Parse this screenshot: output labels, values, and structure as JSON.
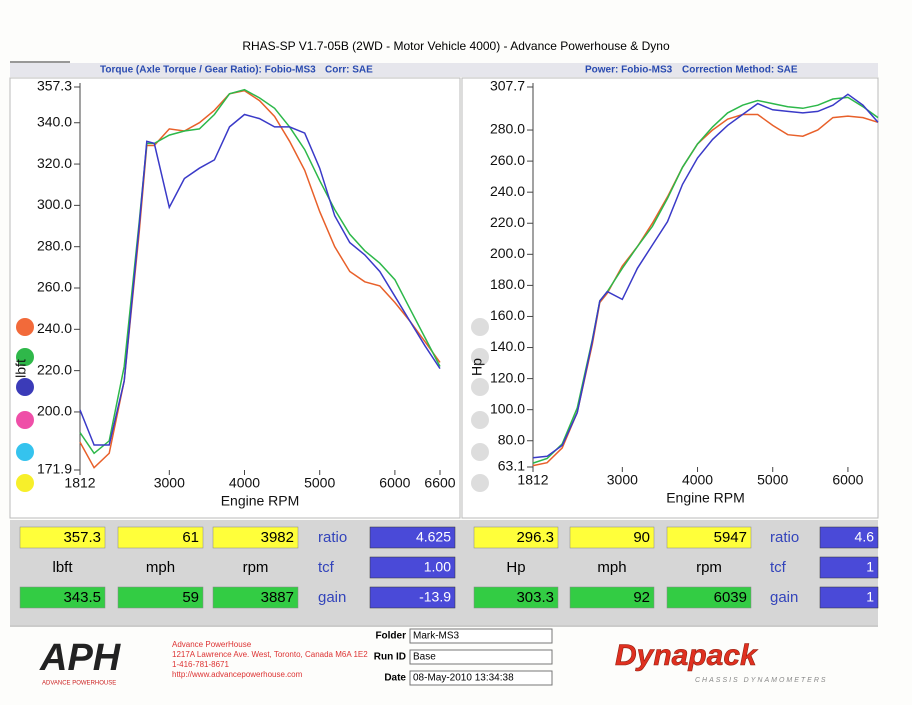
{
  "page_title": "RHAS-SP V1.7-05B  (2WD - Motor Vehicle 4000) - Advance Powerhouse & Dyno",
  "chart_data": [
    {
      "type": "line",
      "title": "Torque (Axle Torque / Gear Ratio): Fobio-MS3",
      "subtitle": "Corr: SAE",
      "x_label": "Engine RPM",
      "y_label": "lbft",
      "x": [
        1812,
        2000,
        2200,
        2400,
        2600,
        2700,
        2800,
        3000,
        3200,
        3400,
        3600,
        3800,
        4000,
        4200,
        4400,
        4600,
        4800,
        5000,
        5200,
        5400,
        5600,
        5800,
        6000,
        6200,
        6400,
        6600
      ],
      "xlim": [
        1812,
        6600
      ],
      "xticks": [
        1812,
        3000,
        4000,
        5000,
        6000,
        6600
      ],
      "ylim": [
        171.9,
        357.3
      ],
      "yticks": [
        171.9,
        {
          "value": 200,
          "label": "200.0"
        },
        {
          "value": 220,
          "label": "220.0"
        },
        {
          "value": 240,
          "label": "240.0"
        },
        {
          "value": 260,
          "label": "260.0"
        },
        {
          "value": 280,
          "label": "280.0"
        },
        {
          "value": 300,
          "label": "300.0"
        },
        {
          "value": 320,
          "label": "320.0"
        },
        {
          "value": 340,
          "label": "340.0"
        },
        357.3
      ],
      "series": [
        {
          "color": "#e8602a",
          "values": [
            185.4,
            173,
            180,
            215,
            287,
            329,
            329,
            337,
            336,
            340,
            346,
            354,
            355.5,
            350.7,
            343,
            331,
            317,
            297,
            280,
            268,
            263,
            261,
            253,
            244,
            234,
            224
          ]
        },
        {
          "color": "#2db84a",
          "values": [
            190,
            180,
            186,
            222,
            292,
            330,
            330,
            334,
            336,
            337,
            344,
            354,
            356,
            352,
            347,
            338,
            327,
            312,
            298,
            286,
            278,
            272,
            264,
            250,
            236,
            222
          ]
        },
        {
          "color": "#3a3ac8",
          "values": [
            201,
            184,
            184,
            215,
            290,
            331,
            330,
            299,
            313,
            318,
            322,
            338,
            344,
            342,
            338,
            338,
            335,
            318,
            295,
            282,
            276,
            268,
            256,
            244,
            232,
            221
          ]
        }
      ]
    },
    {
      "type": "line",
      "title": "Power: Fobio-MS3",
      "subtitle": "Correction Method: SAE",
      "x_label": "Engine RPM",
      "y_label": "Hp",
      "x": [
        1812,
        2000,
        2200,
        2400,
        2600,
        2700,
        2800,
        3000,
        3200,
        3400,
        3600,
        3800,
        4000,
        4200,
        4400,
        4600,
        4800,
        5000,
        5200,
        5400,
        5600,
        5800,
        6000,
        6200,
        6400
      ],
      "xlim": [
        1812,
        6400
      ],
      "xticks": [
        1812,
        3000,
        4000,
        5000,
        6000
      ],
      "ylim": [
        63.1,
        307.7
      ],
      "yticks": [
        63.1,
        {
          "value": 80,
          "label": "80.0"
        },
        {
          "value": 100,
          "label": "100.0"
        },
        {
          "value": 120,
          "label": "120.0"
        },
        {
          "value": 140,
          "label": "140.0"
        },
        {
          "value": 160,
          "label": "160.0"
        },
        {
          "value": 180,
          "label": "180.0"
        },
        {
          "value": 200,
          "label": "200.0"
        },
        {
          "value": 220,
          "label": "220.0"
        },
        {
          "value": 240,
          "label": "240.0"
        },
        {
          "value": 260,
          "label": "260.0"
        },
        {
          "value": 280,
          "label": "280.0"
        },
        307.7
      ],
      "series": [
        {
          "color": "#e8602a",
          "values": [
            64,
            65.9,
            75.4,
            98.2,
            142,
            169,
            175,
            192.5,
            205,
            220,
            237,
            256,
            271,
            280,
            287,
            290,
            290,
            283,
            277,
            276,
            280,
            288,
            289,
            288,
            285
          ]
        },
        {
          "color": "#2db84a",
          "values": [
            65.6,
            68.6,
            78,
            101,
            145,
            170,
            176,
            191,
            205,
            218,
            236,
            256,
            271,
            282,
            291,
            296,
            299,
            297,
            295,
            294,
            296,
            300,
            301,
            295,
            288
          ]
        },
        {
          "color": "#3a3ac8",
          "values": [
            69,
            70,
            77,
            98,
            144,
            170,
            176,
            171,
            191,
            206,
            221,
            245,
            262,
            274,
            283,
            290,
            297,
            293,
            292,
            291,
            292,
            296,
            303,
            296,
            285
          ]
        }
      ]
    }
  ],
  "readouts": [
    {
      "rows": [
        [
          "357.3",
          "61",
          "3982",
          "ratio",
          "4.625"
        ],
        [
          "lbft",
          "mph",
          "rpm",
          "tcf",
          "1.00"
        ],
        [
          "343.5",
          "59",
          "3887",
          "gain",
          "-13.9"
        ]
      ]
    },
    {
      "rows": [
        [
          "296.3",
          "90",
          "5947",
          "ratio",
          "4.6"
        ],
        [
          "Hp",
          "mph",
          "rpm",
          "tcf",
          "1"
        ],
        [
          "303.3",
          "92",
          "6039",
          "gain",
          "1"
        ]
      ]
    }
  ],
  "footer": {
    "logo": "APH",
    "logo_sub": "ADVANCE POWERHOUSE",
    "address": [
      "Advance PowerHouse",
      "1217A Lawrence Ave. West, Toronto, Canada M6A 1E2",
      "1-416-781-8671",
      "http://www.advancepowerhouse.com"
    ],
    "fields": [
      {
        "label": "Folder",
        "value": "Mark-MS3"
      },
      {
        "label": "Run ID",
        "value": "Base"
      },
      {
        "label": "Date",
        "value": "08-May-2010  13:34:38"
      }
    ],
    "brand": "Dynapack",
    "brand_sub": "CHASSIS DYNAMOMETERS"
  }
}
